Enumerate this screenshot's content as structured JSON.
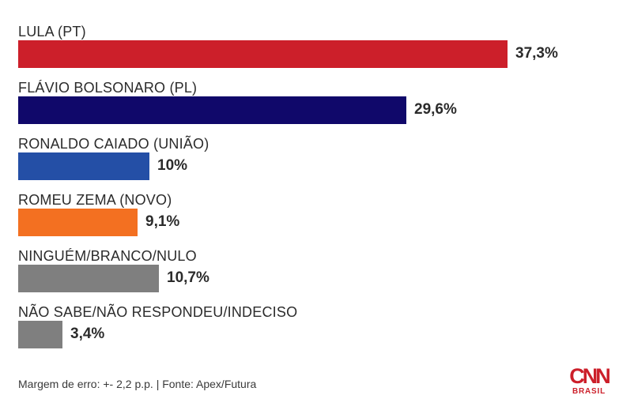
{
  "chart_data": {
    "type": "bar",
    "orientation": "horizontal",
    "categories": [
      "LULA (PT)",
      "FLÁVIO BOLSONARO (PL)",
      "RONALDO CAIADO (UNIÃO)",
      "ROMEU ZEMA (NOVO)",
      "NINGUÉM/BRANCO/NULO",
      "NÃO SABE/NÃO RESPONDEU/INDECISO"
    ],
    "values": [
      37.3,
      29.6,
      10,
      9.1,
      10.7,
      3.4
    ],
    "value_labels": [
      "37,3%",
      "29,6%",
      "10%",
      "9,1%",
      "10,7%",
      "3,4%"
    ],
    "colors": [
      "#cc1f2a",
      "#10086a",
      "#244fa6",
      "#f37021",
      "#7f7f7f",
      "#7f7f7f"
    ],
    "xlim": [
      0,
      38
    ],
    "grid": false,
    "legend": "none"
  },
  "footer": {
    "note": "Margem de erro: +- 2,2 p.p. | Fonte: Apex/Futura"
  },
  "logo": {
    "brand": "CNN",
    "sub": "BRASIL"
  }
}
